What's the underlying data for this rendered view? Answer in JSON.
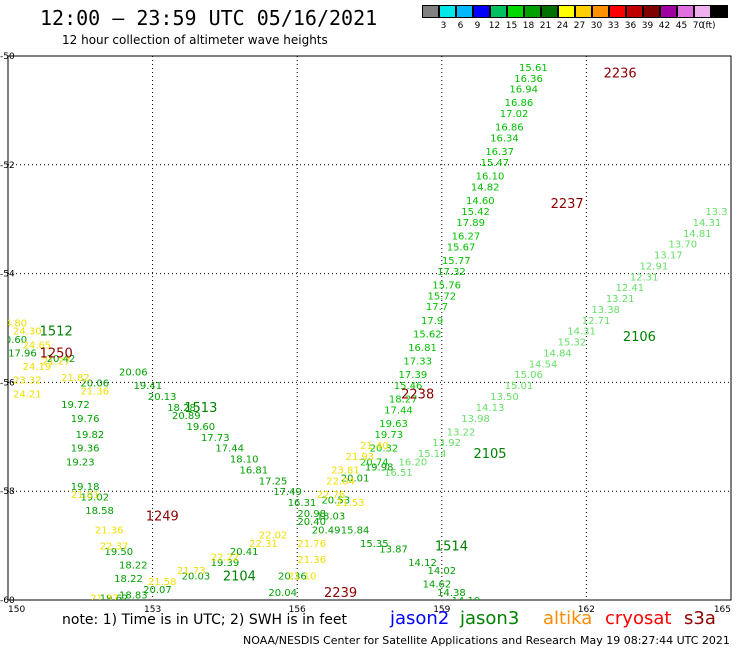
{
  "header": {
    "title": "12:00 — 23:59 UTC 05/16/2021",
    "subtitle": "12 hour collection of altimeter wave heights"
  },
  "color_scale": {
    "unit": "(ft)",
    "bins": [
      {
        "color": "#808080",
        "label": ""
      },
      {
        "color": "#00e8e8",
        "label": "3"
      },
      {
        "color": "#00b8ff",
        "label": "6"
      },
      {
        "color": "#0000ff",
        "label": "9"
      },
      {
        "color": "#00c060",
        "label": "12"
      },
      {
        "color": "#00d800",
        "label": "15"
      },
      {
        "color": "#00a000",
        "label": "18"
      },
      {
        "color": "#007000",
        "label": "21"
      },
      {
        "color": "#ffff00",
        "label": "24"
      },
      {
        "color": "#ffd000",
        "label": "27"
      },
      {
        "color": "#ff9000",
        "label": "30"
      },
      {
        "color": "#ff0000",
        "label": "33"
      },
      {
        "color": "#c00000",
        "label": "36"
      },
      {
        "color": "#800000",
        "label": "39"
      },
      {
        "color": "#a000a0",
        "label": "42"
      },
      {
        "color": "#e070e0",
        "label": "45"
      },
      {
        "color": "#f0b0f0",
        "label": "70"
      },
      {
        "color": "#000000",
        "label": ""
      }
    ]
  },
  "footer": {
    "note": "note: 1) Time is in UTC; 2) SWH is in feet",
    "legend": [
      {
        "name": "jason2",
        "color": "#0000ff"
      },
      {
        "name": "jason3",
        "color": "#008000"
      },
      {
        "name": "altika",
        "color": "#ff8c00"
      },
      {
        "name": "cryosat",
        "color": "#ff0000"
      },
      {
        "name": "s3a",
        "color": "#8b0000"
      }
    ],
    "credit": "NOAA/NESDIS Center for Satellite Applications and Research",
    "timestamp": "May 19 08:27:44 UTC 2021"
  },
  "chart_data": {
    "type": "scatter",
    "xlim": [
      150,
      165
    ],
    "ylim": [
      -60,
      -50
    ],
    "x_ticks": [
      "150",
      "153",
      "156",
      "159",
      "162",
      "165"
    ],
    "x_tick_values": [
      150,
      153,
      156,
      159,
      162,
      165
    ],
    "y_ticks": [
      "-50",
      "-52",
      "-54",
      "-56",
      "-58",
      "-60"
    ],
    "y_tick_values": [
      -50,
      -52,
      -54,
      -56,
      -58,
      -60
    ],
    "grid": true,
    "tracks": [
      {
        "color": "#00c000",
        "points": [
          [
            160.9,
            -50.2,
            "15.61"
          ],
          [
            160.8,
            -50.4,
            "16.36"
          ],
          [
            160.7,
            -50.6,
            "16.94"
          ],
          [
            160.6,
            -50.85,
            "16.86"
          ],
          [
            160.5,
            -51.05,
            "17.02"
          ],
          [
            160.4,
            -51.3,
            "16.86"
          ],
          [
            160.3,
            -51.5,
            "16.34"
          ],
          [
            160.2,
            -51.75,
            "16.37"
          ],
          [
            160.1,
            -51.95,
            "15.47"
          ],
          [
            160.0,
            -52.2,
            "16.10"
          ],
          [
            159.9,
            -52.4,
            "14.82"
          ],
          [
            159.8,
            -52.65,
            "14.60"
          ],
          [
            159.7,
            -52.85,
            "15.42"
          ],
          [
            159.6,
            -53.05,
            "17.89"
          ],
          [
            159.5,
            -53.3,
            "16.27"
          ],
          [
            159.4,
            -53.5,
            "15.67"
          ],
          [
            159.3,
            -53.75,
            "15.77"
          ],
          [
            159.2,
            -53.95,
            "17.32"
          ],
          [
            159.1,
            -54.2,
            "15.76"
          ],
          [
            159.0,
            -54.4,
            "15.72"
          ],
          [
            158.9,
            -54.6,
            "17.7"
          ],
          [
            158.8,
            -54.85,
            "17.9"
          ],
          [
            158.7,
            -55.1,
            "15.62"
          ],
          [
            158.6,
            -55.35,
            "16.81"
          ],
          [
            158.5,
            -55.6,
            "17.33"
          ],
          [
            158.4,
            -55.85,
            "17.39"
          ],
          [
            158.3,
            -56.05,
            "15.46"
          ],
          [
            158.2,
            -56.3,
            "18.27"
          ],
          [
            158.1,
            -56.5,
            "17.44"
          ],
          [
            158.0,
            -56.75,
            "19.63"
          ],
          [
            157.9,
            -56.95,
            "19.73"
          ],
          [
            157.8,
            -57.2,
            "20.32"
          ],
          [
            157.6,
            -57.45,
            "20.74"
          ]
        ]
      },
      {
        "color": "#00a000",
        "points": [
          [
            150.1,
            -55.2,
            "20.60"
          ],
          [
            150.3,
            -55.45,
            "17.96"
          ],
          [
            151.1,
            -55.55,
            "20.42"
          ],
          [
            151.8,
            -56.0,
            "20.06"
          ],
          [
            151.4,
            -56.4,
            "19.72"
          ],
          [
            151.6,
            -56.65,
            "19.76"
          ],
          [
            151.7,
            -56.95,
            "19.82"
          ],
          [
            151.6,
            -57.2,
            "19.36"
          ],
          [
            151.5,
            -57.45,
            "19.23"
          ],
          [
            151.6,
            -57.9,
            "19.18"
          ],
          [
            151.8,
            -58.1,
            "19.02"
          ],
          [
            151.9,
            -58.35,
            "18.58"
          ],
          [
            152.3,
            -59.1,
            "19.50"
          ],
          [
            152.6,
            -59.35,
            "18.22"
          ],
          [
            152.5,
            -59.6,
            "18.22"
          ],
          [
            152.6,
            -59.9,
            "18.83"
          ],
          [
            152.2,
            -59.95,
            "19.62"
          ]
        ]
      },
      {
        "color": "#00a000",
        "points": [
          [
            152.6,
            -55.8,
            "20.06"
          ],
          [
            152.9,
            -56.05,
            "19.41"
          ],
          [
            153.2,
            -56.25,
            "20.13"
          ],
          [
            153.6,
            -56.45,
            "18.28"
          ],
          [
            153.7,
            -56.6,
            "20.89"
          ],
          [
            154.0,
            -56.8,
            "19.60"
          ],
          [
            154.3,
            -57.0,
            "17.73"
          ],
          [
            154.6,
            -57.2,
            "17.44"
          ],
          [
            154.9,
            -57.4,
            "18.10"
          ],
          [
            155.1,
            -57.6,
            "16.81"
          ],
          [
            155.5,
            -57.8,
            "17.25"
          ],
          [
            155.8,
            -58.0,
            "17.49"
          ],
          [
            156.1,
            -58.2,
            "16.31"
          ],
          [
            156.3,
            -58.4,
            "20.98"
          ],
          [
            156.7,
            -58.45,
            "18.03"
          ],
          [
            156.6,
            -58.7,
            "20.49"
          ],
          [
            157.2,
            -58.7,
            "15.84"
          ],
          [
            157.6,
            -58.95,
            "15.35"
          ],
          [
            158.0,
            -59.05,
            "13.87"
          ],
          [
            158.6,
            -59.3,
            "14.12"
          ],
          [
            159.0,
            -59.45,
            "14.02"
          ],
          [
            158.9,
            -59.7,
            "14.62"
          ],
          [
            159.2,
            -59.85,
            "14.38"
          ],
          [
            159.5,
            -60.0,
            "14.19"
          ],
          [
            159.7,
            -60.15,
            "13.07"
          ],
          [
            160.2,
            -60.4,
            "12.60"
          ],
          [
            160.7,
            -60.6,
            "12.53"
          ]
        ]
      },
      {
        "color": "#66e066",
        "points": [
          [
            158.1,
            -57.65,
            "16.51"
          ],
          [
            158.4,
            -57.45,
            "16.20"
          ],
          [
            158.8,
            -57.3,
            "15.14"
          ],
          [
            159.1,
            -57.1,
            "13.92"
          ],
          [
            159.4,
            -56.9,
            "13.22"
          ],
          [
            159.7,
            -56.65,
            "13.98"
          ],
          [
            160.0,
            -56.45,
            "14.13"
          ],
          [
            160.3,
            -56.25,
            "13.50"
          ],
          [
            160.6,
            -56.05,
            "15.01"
          ],
          [
            160.8,
            -55.85,
            "15.06"
          ],
          [
            161.1,
            -55.65,
            "14.54"
          ],
          [
            161.4,
            -55.45,
            "14.84"
          ],
          [
            161.7,
            -55.25,
            "15.32"
          ],
          [
            161.9,
            -55.05,
            "14.31"
          ],
          [
            162.2,
            -54.85,
            "12.71"
          ],
          [
            162.4,
            -54.65,
            "13.38"
          ],
          [
            162.7,
            -54.45,
            "13.21"
          ],
          [
            162.9,
            -54.25,
            "12.41"
          ],
          [
            163.2,
            -54.05,
            "12.31"
          ],
          [
            163.4,
            -53.85,
            "12.91"
          ],
          [
            163.7,
            -53.65,
            "13.17"
          ],
          [
            164.0,
            -53.45,
            "13.70"
          ],
          [
            164.3,
            -53.25,
            "14.81"
          ],
          [
            164.5,
            -53.05,
            "14.31"
          ],
          [
            164.7,
            -52.85,
            "13.3"
          ]
        ]
      },
      {
        "color": "#00a000",
        "points": [
          [
            157.7,
            -57.55,
            "19.98"
          ],
          [
            157.2,
            -57.75,
            "20.01"
          ],
          [
            156.8,
            -58.15,
            "20.53"
          ],
          [
            156.3,
            -58.55,
            "20.40"
          ],
          [
            154.9,
            -59.1,
            "20.41"
          ],
          [
            154.5,
            -59.3,
            "19.39"
          ],
          [
            153.9,
            -59.55,
            "20.03"
          ],
          [
            153.1,
            -59.8,
            "20.07"
          ],
          [
            155.9,
            -59.55,
            "20.36"
          ],
          [
            155.7,
            -59.85,
            "20.04"
          ]
        ]
      },
      {
        "color": "#f0e000",
        "points": [
          [
            150.1,
            -54.9,
            "24.80"
          ],
          [
            150.4,
            -55.05,
            "24.30"
          ],
          [
            150.6,
            -55.3,
            "24.65"
          ],
          [
            151.0,
            -55.6,
            "21.27"
          ],
          [
            150.6,
            -55.7,
            "24.19"
          ],
          [
            150.4,
            -55.95,
            "23.32"
          ],
          [
            151.4,
            -55.9,
            "21.82"
          ],
          [
            151.8,
            -56.15,
            "21.36"
          ],
          [
            150.4,
            -56.2,
            "24.21"
          ],
          [
            151.6,
            -58.05,
            "21.01"
          ],
          [
            152.1,
            -58.7,
            "21.36"
          ],
          [
            152.2,
            -59.0,
            "22.37"
          ],
          [
            153.2,
            -59.65,
            "21.58"
          ],
          [
            153.8,
            -59.45,
            "21.73"
          ],
          [
            154.5,
            -59.2,
            "22.22"
          ],
          [
            155.3,
            -58.95,
            "22.31"
          ],
          [
            155.5,
            -58.8,
            "22.02"
          ],
          [
            156.3,
            -58.95,
            "21.76"
          ],
          [
            156.3,
            -59.25,
            "21.36"
          ],
          [
            156.1,
            -59.55,
            "21.10"
          ],
          [
            155.8,
            -60.1,
            "21.62"
          ],
          [
            157.6,
            -57.15,
            "21.40"
          ],
          [
            157.3,
            -57.35,
            "21.93"
          ],
          [
            157.0,
            -57.6,
            "23.81"
          ],
          [
            156.9,
            -57.8,
            "22.04"
          ],
          [
            156.7,
            -58.05,
            "22.76"
          ],
          [
            157.1,
            -58.2,
            "21.53"
          ],
          [
            152.0,
            -59.95,
            "21.37"
          ],
          [
            152.3,
            -60.15,
            "21.23"
          ]
        ]
      }
    ],
    "time_labels": [
      {
        "x": 162.7,
        "y": -50.3,
        "text": "2236",
        "color": "#8b0000"
      },
      {
        "x": 161.6,
        "y": -52.7,
        "text": "2237",
        "color": "#8b0000"
      },
      {
        "x": 158.5,
        "y": -56.2,
        "text": "2238",
        "color": "#8b0000"
      },
      {
        "x": 156.9,
        "y": -59.85,
        "text": "2239",
        "color": "#8b0000"
      },
      {
        "x": 151.0,
        "y": -55.45,
        "text": "1250",
        "color": "#8b0000"
      },
      {
        "x": 153.2,
        "y": -58.45,
        "text": "1249",
        "color": "#8b0000"
      },
      {
        "x": 151.0,
        "y": -55.05,
        "text": "1512",
        "color": "#008000"
      },
      {
        "x": 154.0,
        "y": -56.45,
        "text": "1513",
        "color": "#008000"
      },
      {
        "x": 159.2,
        "y": -59.0,
        "text": "1514",
        "color": "#008000"
      },
      {
        "x": 160.0,
        "y": -57.3,
        "text": "2105",
        "color": "#008000"
      },
      {
        "x": 163.1,
        "y": -55.15,
        "text": "2106",
        "color": "#008000"
      },
      {
        "x": 154.8,
        "y": -59.55,
        "text": "2104",
        "color": "#008000"
      }
    ]
  }
}
